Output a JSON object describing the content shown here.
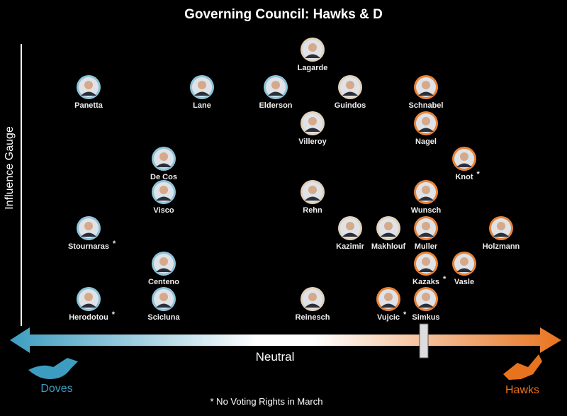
{
  "header": {
    "title": "Governing Council: Hawks & D",
    "axis_label": "Influence Gauge"
  },
  "scale": {
    "left": "Doves",
    "center": "Neutral",
    "right": "Hawks"
  },
  "footnote": "* No Voting Rights in March",
  "nodes": [
    {
      "label": "Lagarde"
    },
    {
      "label": "Panetta"
    },
    {
      "label": "Lane"
    },
    {
      "label": "Elderson"
    },
    {
      "label": "Guindos"
    },
    {
      "label": "Schnabel"
    },
    {
      "label": "Villeroy"
    },
    {
      "label": "Nagel"
    },
    {
      "label": "De Cos"
    },
    {
      "label": "Knot",
      "note": "*"
    },
    {
      "label": "Visco"
    },
    {
      "label": "Rehn"
    },
    {
      "label": "Wunsch"
    },
    {
      "label": "Stournaras",
      "note": "*"
    },
    {
      "label": "Kazimir"
    },
    {
      "label": "Makhlouf"
    },
    {
      "label": "Muller"
    },
    {
      "label": "Holzmann"
    },
    {
      "label": "Centeno"
    },
    {
      "label": "Kazaks",
      "note": "*"
    },
    {
      "label": "Vasle"
    },
    {
      "label": "Herodotou",
      "note": "*"
    },
    {
      "label": "Scicluna"
    },
    {
      "label": "Reinesch"
    },
    {
      "label": "Vujcic",
      "note": "*"
    },
    {
      "label": "Simkus"
    }
  ]
}
